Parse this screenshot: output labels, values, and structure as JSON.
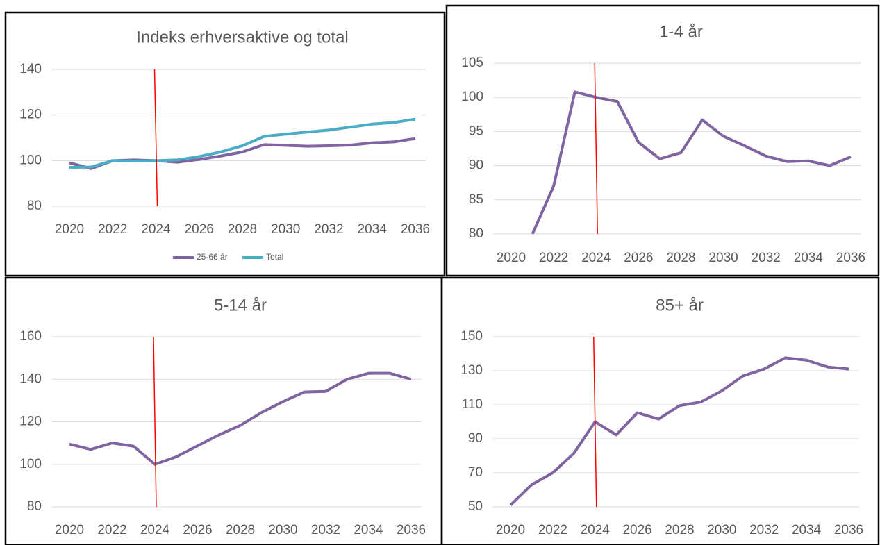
{
  "chart_data": [
    {
      "type": "line",
      "title": "Indeks erhversaktive og total",
      "x": [
        2020,
        2021,
        2022,
        2023,
        2024,
        2025,
        2026,
        2027,
        2028,
        2029,
        2030,
        2031,
        2032,
        2033,
        2034,
        2035,
        2036
      ],
      "series": [
        {
          "name": "25-66 år",
          "color": "#8064a2",
          "values": [
            99,
            96.5,
            100,
            100.3,
            100,
            99.3,
            100.5,
            102,
            103.8,
            107,
            106.7,
            106.3,
            106.5,
            106.8,
            107.8,
            108.2,
            109.7
          ]
        },
        {
          "name": "Total",
          "color": "#4bacc6",
          "values": [
            97,
            97.2,
            100,
            99.8,
            100,
            100.3,
            101.8,
            103.8,
            106.5,
            110.6,
            111.6,
            112.5,
            113.4,
            114.7,
            116,
            116.7,
            118.2
          ]
        }
      ],
      "xlim": [
        2020,
        2036
      ],
      "xticks": [
        2020,
        2022,
        2024,
        2026,
        2028,
        2030,
        2032,
        2034,
        2036
      ],
      "ylim": [
        80,
        140
      ],
      "yticks": [
        80,
        100,
        120,
        140
      ],
      "grid": true,
      "legend": "bottom",
      "vline": 2024,
      "vline_color": "#ff0000"
    },
    {
      "type": "line",
      "title": "1-4 år",
      "x": [
        2020,
        2021,
        2022,
        2023,
        2024,
        2025,
        2026,
        2027,
        2028,
        2029,
        2030,
        2031,
        2032,
        2033,
        2034,
        2035,
        2036
      ],
      "series": [
        {
          "name": "1-4 år",
          "color": "#8064a2",
          "values": [
            null,
            80,
            87,
            100.8,
            100,
            99.4,
            93.4,
            91,
            91.9,
            96.7,
            94.3,
            92.9,
            91.4,
            90.6,
            90.7,
            90,
            91.3
          ]
        }
      ],
      "xlim": [
        2020,
        2036
      ],
      "xticks": [
        2020,
        2022,
        2024,
        2026,
        2028,
        2030,
        2032,
        2034,
        2036
      ],
      "ylim": [
        80,
        105
      ],
      "yticks": [
        80,
        85,
        90,
        95,
        100,
        105
      ],
      "grid": true,
      "vline": 2024,
      "vline_color": "#ff0000"
    },
    {
      "type": "line",
      "title": "5-14 år",
      "x": [
        2020,
        2021,
        2022,
        2023,
        2024,
        2025,
        2026,
        2027,
        2028,
        2029,
        2030,
        2031,
        2032,
        2033,
        2034,
        2035,
        2036
      ],
      "series": [
        {
          "name": "5-14 år",
          "color": "#8064a2",
          "values": [
            109.5,
            107,
            110,
            108.5,
            100,
            103.5,
            108.7,
            113.8,
            118.3,
            124.4,
            129.5,
            134,
            134.3,
            140,
            142.8,
            142.8,
            140
          ]
        }
      ],
      "xlim": [
        2020,
        2036
      ],
      "xticks": [
        2020,
        2022,
        2024,
        2026,
        2028,
        2030,
        2032,
        2034,
        2036
      ],
      "ylim": [
        80,
        160
      ],
      "yticks": [
        80,
        100,
        120,
        140,
        160
      ],
      "grid": true,
      "vline": 2024,
      "vline_color": "#ff0000"
    },
    {
      "type": "line",
      "title": "85+ år",
      "x": [
        2020,
        2021,
        2022,
        2023,
        2024,
        2025,
        2026,
        2027,
        2028,
        2029,
        2030,
        2031,
        2032,
        2033,
        2034,
        2035,
        2036
      ],
      "series": [
        {
          "name": "85+ år",
          "color": "#8064a2",
          "values": [
            51,
            63,
            70,
            81.5,
            100,
            92.3,
            105.3,
            101.6,
            109.5,
            111.6,
            118.2,
            127,
            131,
            137.6,
            136.2,
            132.2,
            131
          ]
        }
      ],
      "xlim": [
        2020,
        2036
      ],
      "xticks": [
        2020,
        2022,
        2024,
        2026,
        2028,
        2030,
        2032,
        2034,
        2036
      ],
      "ylim": [
        50,
        150
      ],
      "yticks": [
        50,
        70,
        90,
        110,
        130,
        150
      ],
      "grid": true,
      "vline": 2024,
      "vline_color": "#ff0000"
    }
  ]
}
